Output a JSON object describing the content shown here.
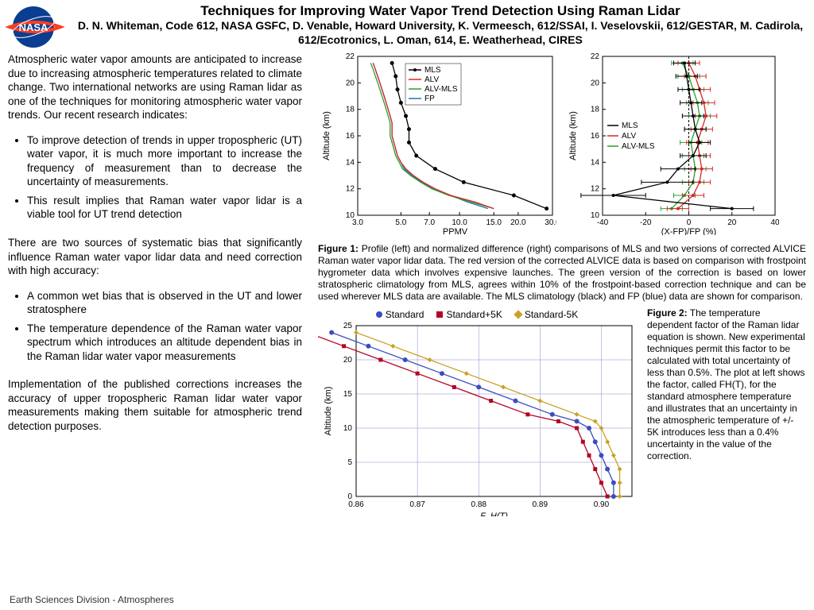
{
  "title": "Techniques for Improving Water Vapor Trend Detection Using Raman Lidar",
  "authors": "D. N. Whiteman, Code 612, NASA GSFC, D. Venable, Howard University, K. Vermeesch, 612/SSAI,  I. Veselovskii, 612/GESTAR, M. Cadirola, 612/Ecotronics, L. Oman, 614, E. Weatherhead, CIRES",
  "intro": "Atmospheric water vapor amounts are anticipated to increase due to increasing atmospheric temperatures related to climate change. Two international networks are using Raman lidar as one of the techniques for monitoring atmospheric water vapor trends. Our recent research indicates:",
  "bullets1": [
    "To improve detection of trends in upper tropospheric (UT) water vapor, it is much more important to increase the frequency of measurement than to decrease the uncertainty of measurements.",
    "This result implies that Raman water vapor lidar is a viable tool for UT trend detection"
  ],
  "mid": "There are two sources of systematic bias that significantly influence Raman water vapor lidar data and need correction with high accuracy:",
  "bullets2": [
    "A common wet bias that is observed in the UT and lower stratosphere",
    "The temperature dependence of the Raman water vapor spectrum which introduces an altitude dependent bias in the Raman lidar water vapor measurements"
  ],
  "concl": "Implementation of the published corrections increases the accuracy of upper tropospheric Raman lidar water vapor measurements making them suitable for atmospheric trend detection purposes.",
  "footer": "Earth Sciences Division - Atmospheres",
  "fig1": {
    "caption_label": "Figure 1:",
    "caption": " Profile (left) and normalized difference (right) comparisons of MLS and two versions of corrected ALVICE Raman water vapor lidar data. The red version of the corrected ALVICE data is based on comparison with frostpoint hygrometer data which involves expensive launches. The green version of the correction is based on lower stratospheric climatology from MLS, agrees within 10% of the frostpoint-based correction technique and can be used wherever MLS data are available. The MLS climatology (black) and FP (blue) data are shown for comparison.",
    "left": {
      "xlabel": "PPMV",
      "ylabel": "Altitude (km)",
      "xlim": [
        3.0,
        30.0
      ],
      "ylim": [
        10,
        22
      ],
      "xticks": [
        3.0,
        5.0,
        7.0,
        10.0,
        15.0,
        20.0,
        30.0
      ],
      "yticks": [
        10,
        12,
        14,
        16,
        18,
        20,
        22
      ],
      "series": {
        "MLS": {
          "color": "#000000",
          "marker": "circle",
          "pts": [
            [
              28,
              10.5
            ],
            [
              19,
              11.5
            ],
            [
              10.5,
              12.5
            ],
            [
              7.5,
              13.5
            ],
            [
              6,
              14.5
            ],
            [
              5.5,
              15.5
            ],
            [
              5.5,
              16.5
            ],
            [
              5.3,
              17.5
            ],
            [
              5,
              18.5
            ],
            [
              4.8,
              19.5
            ],
            [
              4.7,
              20.5
            ],
            [
              4.5,
              21.5
            ]
          ]
        },
        "ALV": {
          "color": "#d62728",
          "pts": [
            [
              15,
              10.5
            ],
            [
              12,
              11
            ],
            [
              9,
              11.5
            ],
            [
              7.5,
              12
            ],
            [
              6.5,
              12.5
            ],
            [
              5.8,
              13
            ],
            [
              5.3,
              13.5
            ],
            [
              5,
              14
            ],
            [
              4.8,
              14.5
            ],
            [
              4.7,
              15
            ],
            [
              4.6,
              15.5
            ],
            [
              4.5,
              16
            ],
            [
              4.5,
              16.5
            ],
            [
              4.5,
              17
            ],
            [
              4.4,
              17.5
            ],
            [
              4.3,
              18
            ],
            [
              4.2,
              18.5
            ],
            [
              4.1,
              19
            ],
            [
              4.0,
              19.5
            ],
            [
              3.9,
              20
            ],
            [
              3.8,
              20.5
            ],
            [
              3.7,
              21
            ],
            [
              3.6,
              21.5
            ]
          ]
        },
        "ALVMLS": {
          "color": "#2ca02c",
          "pts": [
            [
              15,
              10.5
            ],
            [
              11.5,
              11
            ],
            [
              8.8,
              11.5
            ],
            [
              7.2,
              12
            ],
            [
              6.3,
              12.5
            ],
            [
              5.6,
              13
            ],
            [
              5.1,
              13.5
            ],
            [
              4.9,
              14
            ],
            [
              4.7,
              14.5
            ],
            [
              4.6,
              15
            ],
            [
              4.5,
              15.5
            ],
            [
              4.4,
              16
            ],
            [
              4.4,
              16.5
            ],
            [
              4.4,
              17
            ],
            [
              4.3,
              17.5
            ],
            [
              4.2,
              18
            ],
            [
              4.1,
              18.5
            ],
            [
              4.0,
              19
            ],
            [
              3.9,
              19.5
            ],
            [
              3.8,
              20
            ],
            [
              3.7,
              20.5
            ],
            [
              3.6,
              21
            ],
            [
              3.5,
              21.5
            ]
          ]
        },
        "FP": {
          "color": "#1f77b4",
          "pts": [
            [
              14,
              10.5
            ],
            [
              11,
              11
            ],
            [
              9,
              11.5
            ],
            [
              7.3,
              12
            ],
            [
              6.4,
              12.5
            ],
            [
              5.7,
              13
            ],
            [
              5.2,
              13.5
            ],
            [
              5.0,
              14
            ],
            [
              4.8,
              14.5
            ],
            [
              4.7,
              15
            ],
            [
              4.6,
              15.5
            ],
            [
              4.5,
              16
            ],
            [
              4.5,
              16.5
            ],
            [
              4.5,
              17
            ],
            [
              4.4,
              17.5
            ],
            [
              4.3,
              18
            ],
            [
              4.2,
              18.5
            ],
            [
              4.1,
              19
            ],
            [
              4.0,
              19.5
            ],
            [
              3.9,
              20
            ],
            [
              3.8,
              20.5
            ],
            [
              3.7,
              21
            ],
            [
              3.6,
              21.5
            ]
          ]
        }
      },
      "legend": [
        "MLS",
        "ALV",
        "ALV-MLS",
        "FP"
      ],
      "legend_colors": [
        "#000000",
        "#d62728",
        "#2ca02c",
        "#1f77b4"
      ]
    },
    "right": {
      "xlabel": "(X-FP)/FP (%)",
      "ylabel": "Altitude (km)",
      "xlim": [
        -40,
        40
      ],
      "ylim": [
        10,
        22
      ],
      "xticks": [
        -40,
        -20,
        0,
        20,
        40
      ],
      "yticks": [
        10,
        12,
        14,
        16,
        18,
        20,
        22
      ],
      "series": {
        "MLS": {
          "color": "#000000",
          "pts": [
            [
              20,
              10.5
            ],
            [
              -35,
              11.5
            ],
            [
              -10,
              12.5
            ],
            [
              -5,
              13.5
            ],
            [
              2,
              14.5
            ],
            [
              5,
              15.5
            ],
            [
              3,
              16.5
            ],
            [
              2,
              17.5
            ],
            [
              1,
              18.5
            ],
            [
              0,
              19.5
            ],
            [
              -1,
              20.5
            ],
            [
              -2,
              21.5
            ]
          ],
          "err": [
            10,
            15,
            12,
            8,
            6,
            5,
            5,
            5,
            5,
            5,
            5,
            5
          ]
        },
        "ALV": {
          "color": "#d62728",
          "pts": [
            [
              -5,
              10.5
            ],
            [
              2,
              11.5
            ],
            [
              5,
              12.5
            ],
            [
              6,
              13.5
            ],
            [
              5,
              14.5
            ],
            [
              4,
              15.5
            ],
            [
              6,
              16.5
            ],
            [
              8,
              17.5
            ],
            [
              7,
              18.5
            ],
            [
              5,
              19.5
            ],
            [
              3,
              20.5
            ],
            [
              0,
              21.5
            ]
          ],
          "err": [
            5,
            5,
            5,
            5,
            5,
            5,
            5,
            5,
            5,
            5,
            5,
            5
          ]
        },
        "ALVMLS": {
          "color": "#2ca02c",
          "pts": [
            [
              -8,
              10.5
            ],
            [
              -2,
              11.5
            ],
            [
              2,
              12.5
            ],
            [
              3,
              13.5
            ],
            [
              2,
              14.5
            ],
            [
              1,
              15.5
            ],
            [
              3,
              16.5
            ],
            [
              5,
              17.5
            ],
            [
              4,
              18.5
            ],
            [
              2,
              19.5
            ],
            [
              0,
              20.5
            ],
            [
              -3,
              21.5
            ]
          ],
          "err": [
            5,
            5,
            5,
            5,
            5,
            5,
            5,
            5,
            5,
            5,
            5,
            5
          ]
        }
      },
      "legend": [
        "MLS",
        "ALV",
        "ALV-MLS"
      ],
      "legend_colors": [
        "#000000",
        "#d62728",
        "#2ca02c"
      ]
    }
  },
  "fig2": {
    "caption_label": "Figure 2:",
    "caption": "  The temperature dependent factor of the Raman lidar equation is shown. New experimental techniques permit this factor to be calculated with total uncertainty of less than 0.5%. The plot at left shows the factor, called FH(T), for the standard atmosphere temperature and illustrates that an uncertainty in the atmospheric temperature of +/- 5K introduces less than a 0.4% uncertainty in the value of the correction.",
    "legend": [
      {
        "label": "Standard",
        "shape": "circle",
        "color": "#3b4cc0"
      },
      {
        "label": "Standard+5K",
        "shape": "square",
        "color": "#b40426"
      },
      {
        "label": "Standard-5K",
        "shape": "diamond",
        "color": "#c9a227"
      }
    ],
    "chart": {
      "xlabel": "F_H(T)",
      "ylabel": "Altitude (km)",
      "xlim": [
        0.86,
        0.905
      ],
      "ylim": [
        0,
        25
      ],
      "xticks": [
        0.86,
        0.87,
        0.88,
        0.89,
        0.9
      ],
      "yticks": [
        0,
        5,
        10,
        15,
        20,
        25
      ],
      "grid_color": "#8888cc",
      "series": {
        "Standard": {
          "color": "#3b4cc0",
          "marker": "circle",
          "pts": [
            [
              0.902,
              0
            ],
            [
              0.902,
              2
            ],
            [
              0.901,
              4
            ],
            [
              0.9,
              6
            ],
            [
              0.899,
              8
            ],
            [
              0.898,
              10
            ],
            [
              0.896,
              11
            ],
            [
              0.892,
              12
            ],
            [
              0.886,
              14
            ],
            [
              0.88,
              16
            ],
            [
              0.874,
              18
            ],
            [
              0.868,
              20
            ],
            [
              0.862,
              22
            ],
            [
              0.856,
              24
            ]
          ]
        },
        "Plus5K": {
          "color": "#b40426",
          "marker": "square",
          "pts": [
            [
              0.901,
              0
            ],
            [
              0.9,
              2
            ],
            [
              0.899,
              4
            ],
            [
              0.898,
              6
            ],
            [
              0.897,
              8
            ],
            [
              0.896,
              10
            ],
            [
              0.893,
              11
            ],
            [
              0.888,
              12
            ],
            [
              0.882,
              14
            ],
            [
              0.876,
              16
            ],
            [
              0.87,
              18
            ],
            [
              0.864,
              20
            ],
            [
              0.858,
              22
            ],
            [
              0.852,
              24
            ]
          ]
        },
        "Minus5K": {
          "color": "#c9a227",
          "marker": "diamond",
          "pts": [
            [
              0.903,
              0
            ],
            [
              0.903,
              2
            ],
            [
              0.903,
              4
            ],
            [
              0.902,
              6
            ],
            [
              0.901,
              8
            ],
            [
              0.9,
              10
            ],
            [
              0.899,
              11
            ],
            [
              0.896,
              12
            ],
            [
              0.89,
              14
            ],
            [
              0.884,
              16
            ],
            [
              0.878,
              18
            ],
            [
              0.872,
              20
            ],
            [
              0.866,
              22
            ],
            [
              0.86,
              24
            ]
          ]
        }
      }
    }
  }
}
